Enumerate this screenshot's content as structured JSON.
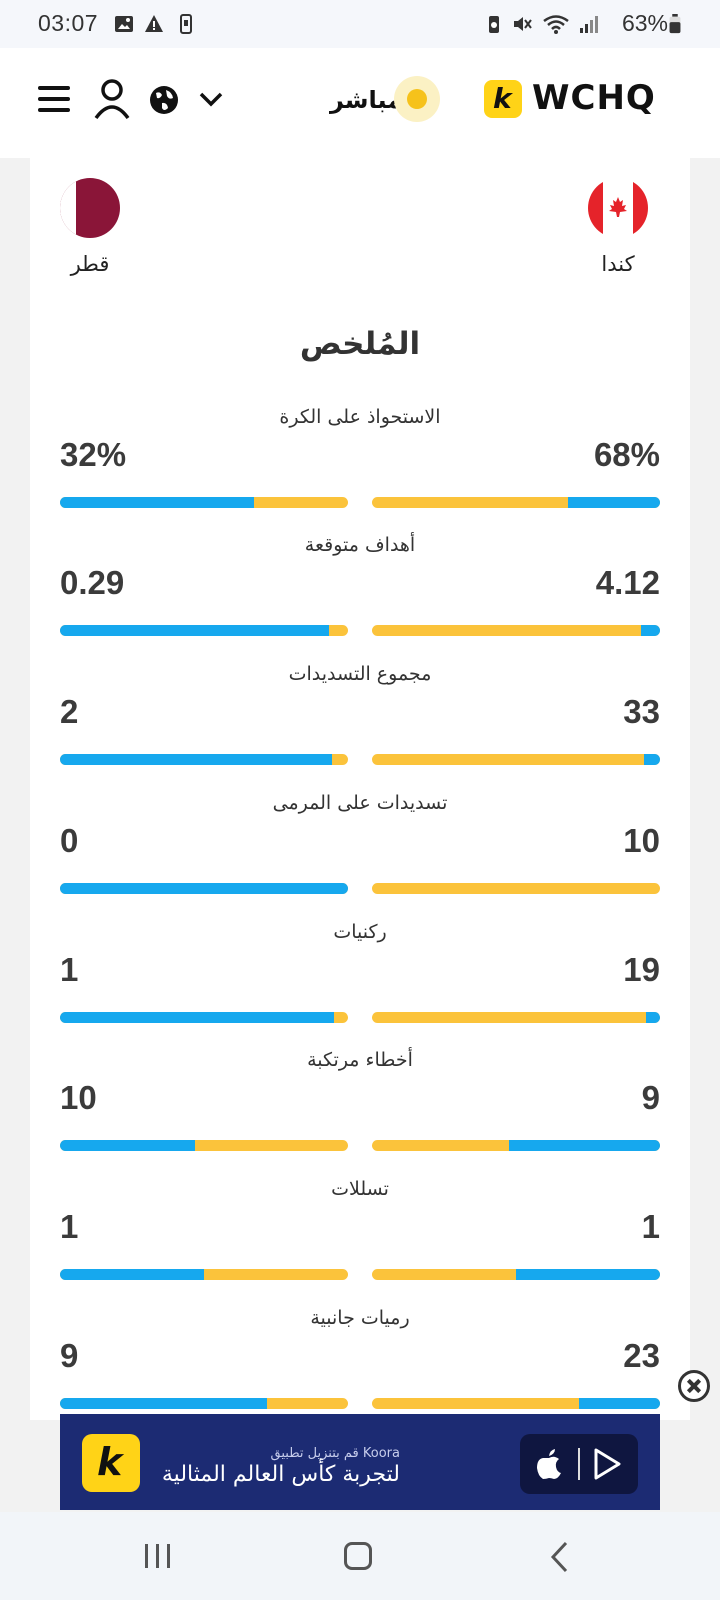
{
  "status_bar": {
    "time": "03:07",
    "battery": "63%",
    "icons": [
      "image-icon",
      "warning-icon",
      "phone-icon",
      "battery-saver-icon",
      "mute-icon",
      "wifi-icon",
      "signal-icon",
      "battery-icon"
    ]
  },
  "header": {
    "live_label": "مباشر",
    "brand_badge": "k",
    "brand_word": "WCHQ",
    "icons": [
      "menu-icon",
      "user-icon",
      "globe-icon",
      "chevron-down-icon"
    ]
  },
  "match": {
    "home_team": {
      "name": "كندا",
      "flag": "canada-flag"
    },
    "away_team": {
      "name": "قطر",
      "flag": "qatar-flag"
    }
  },
  "summary_title": "المُلخص",
  "stats": [
    {
      "label": "الاستحواذ على الكرة",
      "left": "32%",
      "right": "68%",
      "left_fill": 0.675,
      "right_fill": 0.32
    },
    {
      "label": "أهداف متوقعة",
      "left": "0.29",
      "right": "4.12",
      "left_fill": 0.935,
      "right_fill": 0.065
    },
    {
      "label": "مجموع التسديدات",
      "left": "2",
      "right": "33",
      "left_fill": 0.945,
      "right_fill": 0.055
    },
    {
      "label": "تسديدات على المرمى",
      "left": "0",
      "right": "10",
      "left_fill": 1.0,
      "right_fill": 0.0
    },
    {
      "label": "ركنيات",
      "left": "1",
      "right": "19",
      "left_fill": 0.95,
      "right_fill": 0.05
    },
    {
      "label": "أخطاء مرتكبة",
      "left": "10",
      "right": "9",
      "left_fill": 0.47,
      "right_fill": 0.526
    },
    {
      "label": "تسللات",
      "left": "1",
      "right": "1",
      "left_fill": 0.5,
      "right_fill": 0.5
    },
    {
      "label": "رميات جانبية",
      "left": "9",
      "right": "23",
      "left_fill": 0.72,
      "right_fill": 0.28
    }
  ],
  "ad": {
    "line1": "Koora قم بتنزيل تطبيق",
    "line2": "لتجربة كأس العالم المثالية",
    "badge": "k",
    "store_icons": [
      "apple-icon",
      "play-store-icon"
    ]
  },
  "colors": {
    "home_bar": "#fbc33b",
    "away_bar": "#16a8ee",
    "brand": "#ffd317",
    "ad_bg": "#1c2b73"
  }
}
